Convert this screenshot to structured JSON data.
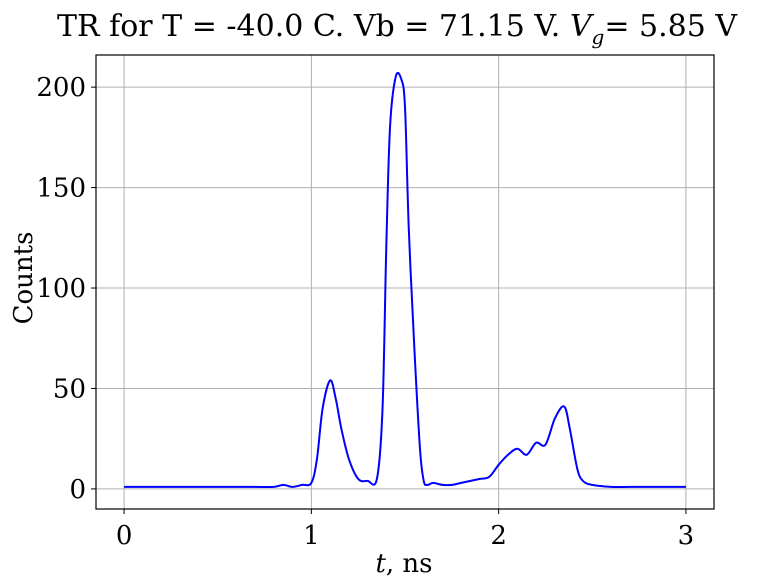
{
  "chart_data": {
    "type": "line",
    "title": "TR for T = -40.0 C. Vb = 71.15 V.",
    "title_math_symbol": "V",
    "title_math_subscript": "g",
    "title_suffix": "= 5.85 V",
    "xlabel_var": "t",
    "xlabel_unit": ", ns",
    "ylabel": "Counts",
    "xlim": [
      -0.15,
      3.15
    ],
    "ylim": [
      -10,
      216
    ],
    "xticks": [
      0,
      1,
      2,
      3
    ],
    "yticks": [
      0,
      50,
      100,
      150,
      200
    ],
    "grid": true,
    "line_color": "#0000ff",
    "series": [
      {
        "x": [
          0.0,
          0.1,
          0.2,
          0.3,
          0.4,
          0.5,
          0.6,
          0.7,
          0.8,
          0.85,
          0.9,
          0.95,
          1.0,
          1.03,
          1.06,
          1.1,
          1.13,
          1.16,
          1.2,
          1.25,
          1.3,
          1.35,
          1.38,
          1.4,
          1.42,
          1.45,
          1.48,
          1.5,
          1.52,
          1.55,
          1.58,
          1.6,
          1.62,
          1.65,
          1.7,
          1.75,
          1.8,
          1.85,
          1.9,
          1.95,
          2.0,
          2.05,
          2.1,
          2.15,
          2.2,
          2.25,
          2.3,
          2.35,
          2.38,
          2.42,
          2.45,
          2.5,
          2.6,
          2.7,
          2.8,
          2.9,
          3.0
        ],
        "y": [
          1,
          1,
          1,
          1,
          1,
          1,
          1,
          1,
          1,
          2,
          1,
          2,
          3,
          15,
          40,
          54,
          45,
          30,
          15,
          5,
          4,
          5,
          40,
          120,
          180,
          205,
          204,
          190,
          130,
          70,
          20,
          4,
          2,
          3,
          2,
          2,
          3,
          4,
          5,
          6,
          12,
          17,
          20,
          17,
          23,
          22,
          35,
          41,
          30,
          10,
          4,
          2,
          1,
          1,
          1,
          1,
          1
        ]
      }
    ]
  }
}
